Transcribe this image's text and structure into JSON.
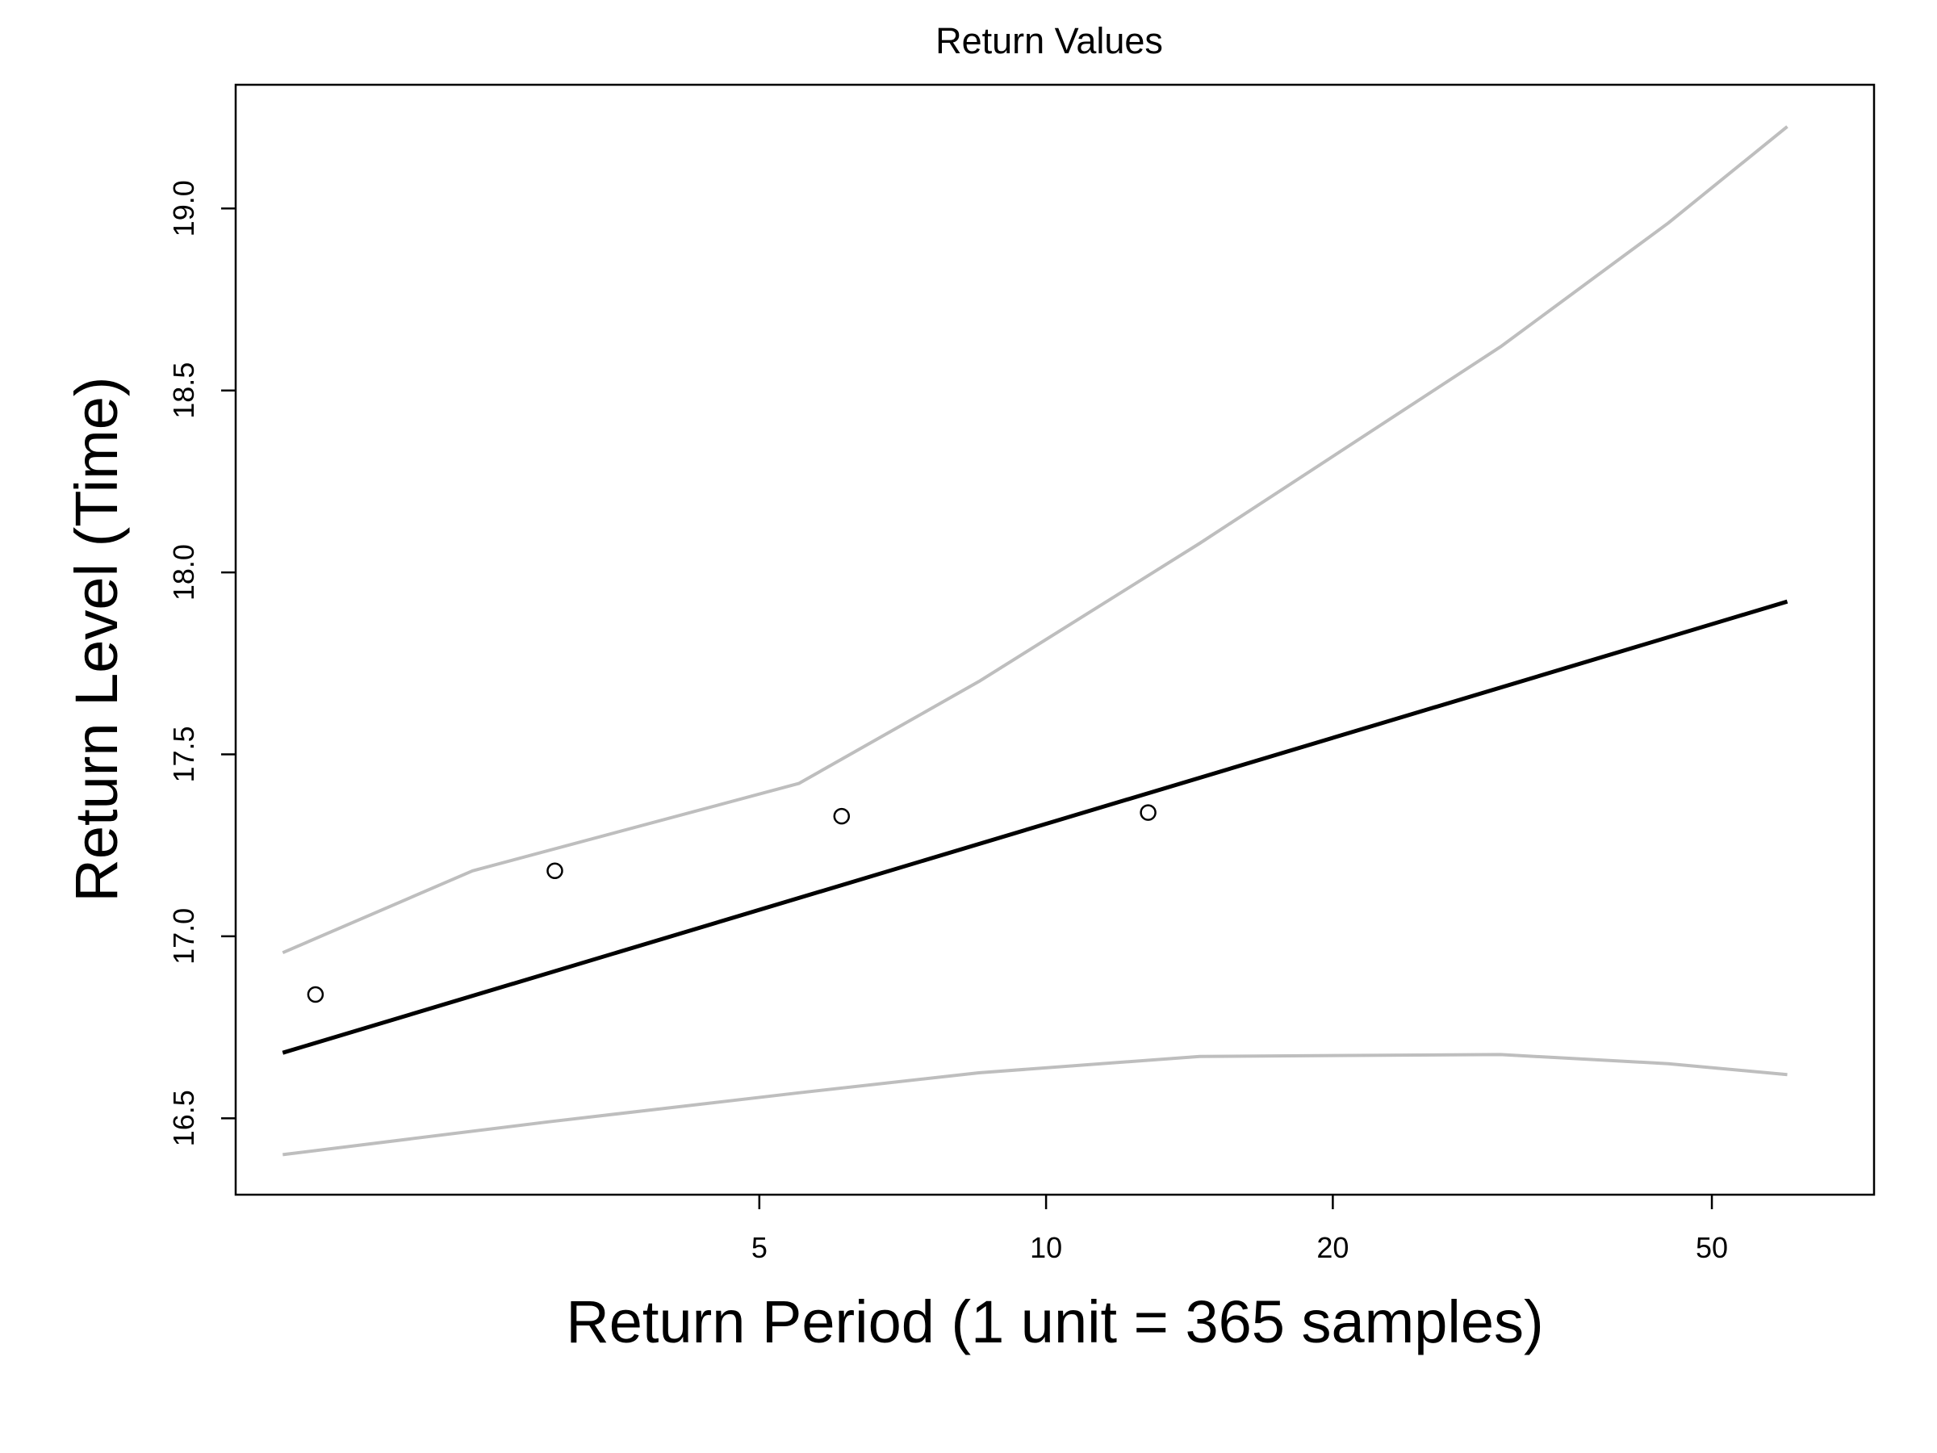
{
  "chart_data": {
    "type": "line",
    "title": "Return Values",
    "xlabel": "Return Period (1 unit = 365 samples)",
    "ylabel": "Return Level (Time)",
    "x_scale": "log",
    "xlim": [
      1.41,
      74
    ],
    "ylim": [
      16.29,
      19.34
    ],
    "x_ticks": [
      5,
      10,
      20,
      50
    ],
    "x_tick_labels": [
      "5",
      "10",
      "20",
      "50"
    ],
    "y_ticks": [
      16.5,
      17.0,
      17.5,
      18.0,
      18.5,
      19.0
    ],
    "y_tick_labels": [
      "16.5",
      "17.0",
      "17.5",
      "18.0",
      "18.5",
      "19.0"
    ],
    "grid": false,
    "series": [
      {
        "role": "fit",
        "color": "#000000",
        "points": [
          [
            1.58,
            16.68
          ],
          [
            60,
            17.92
          ]
        ]
      },
      {
        "role": "upper",
        "color": "#bebebe",
        "points": [
          [
            1.58,
            16.955
          ],
          [
            2.5,
            17.18
          ],
          [
            5.5,
            17.42
          ],
          [
            8.5,
            17.7
          ],
          [
            14.5,
            18.08
          ],
          [
            30,
            18.62
          ],
          [
            45,
            18.96
          ],
          [
            60,
            19.225
          ]
        ]
      },
      {
        "role": "lower",
        "color": "#bebebe",
        "points": [
          [
            1.58,
            16.4
          ],
          [
            3,
            16.49
          ],
          [
            5.5,
            16.57
          ],
          [
            8.5,
            16.625
          ],
          [
            14.5,
            16.67
          ],
          [
            30,
            16.675
          ],
          [
            45,
            16.65
          ],
          [
            60,
            16.62
          ]
        ]
      }
    ],
    "observed_points": [
      [
        1.71,
        16.84
      ],
      [
        3.05,
        17.18
      ],
      [
        6.1,
        17.33
      ],
      [
        12.8,
        17.34
      ]
    ]
  }
}
